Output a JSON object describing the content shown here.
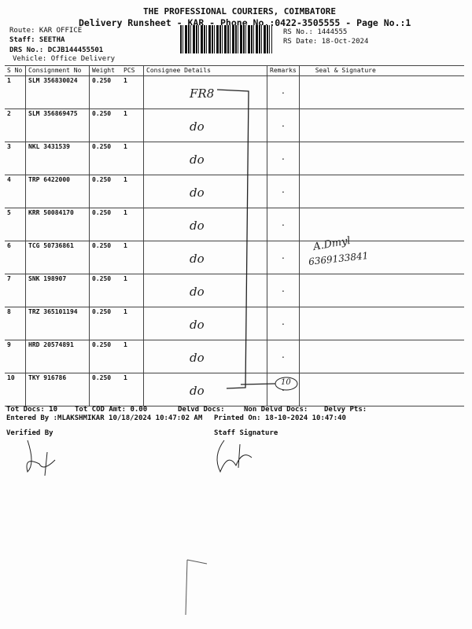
{
  "header": {
    "company": "THE PROFESSIONAL COURIERS, COIMBATORE",
    "title": "Delivery Runsheet - KAR - Phone No.:0422-3505555 - Page No.:1",
    "route": "Route: KAR OFFICE",
    "staff": "Staff: SEETHA",
    "drs": "DRS No.: DCJB144455501",
    "vehicle": "Vehicle: Office Delivery",
    "rs_no": "RS No.: 1444555",
    "rs_date": "RS Date: 18-Oct-2024"
  },
  "table": {
    "columns": [
      "S No",
      "Consignment No",
      "Weight",
      "PCS",
      "Consignee Details",
      "Remarks",
      "Seal & Signature"
    ],
    "rows": [
      {
        "sno": "1",
        "cn": "SLM 356830024",
        "wt": "0.250",
        "pcs": "1",
        "hand": "FR8"
      },
      {
        "sno": "2",
        "cn": "SLM 356869475",
        "wt": "0.250",
        "pcs": "1",
        "hand": "do"
      },
      {
        "sno": "3",
        "cn": "NKL 3431539",
        "wt": "0.250",
        "pcs": "1",
        "hand": "do"
      },
      {
        "sno": "4",
        "cn": "TRP 6422000",
        "wt": "0.250",
        "pcs": "1",
        "hand": "do"
      },
      {
        "sno": "5",
        "cn": "KRR 50084170",
        "wt": "0.250",
        "pcs": "1",
        "hand": "do"
      },
      {
        "sno": "6",
        "cn": "TCG 50736861",
        "wt": "0.250",
        "pcs": "1",
        "hand": "do"
      },
      {
        "sno": "7",
        "cn": "SNK 198907",
        "wt": "0.250",
        "pcs": "1",
        "hand": "do"
      },
      {
        "sno": "8",
        "cn": "TRZ 365101194",
        "wt": "0.250",
        "pcs": "1",
        "hand": "do"
      },
      {
        "sno": "9",
        "cn": "HRD 20574891",
        "wt": "0.250",
        "pcs": "1",
        "hand": "do"
      },
      {
        "sno": "10",
        "cn": "TKY 916786",
        "wt": "0.250",
        "pcs": "1",
        "hand": "do"
      }
    ]
  },
  "handwriting": {
    "circled_count": "10",
    "signature_name": "A.Dmyl",
    "signature_phone": "6369133841"
  },
  "footer": {
    "tot_docs": "Tot Docs:  10",
    "cod": "Tot COD Amt:    0.00",
    "delvd": "Delvd Docs:",
    "non_delvd": "Non Delvd Docs:",
    "pts": "Delvy Pts:",
    "entered": "Entered By :MLAKSHMIKAR 10/18/2024 10:47:02 AM",
    "printed": "Printed On: 18-10-2024 10:47:40",
    "verified": "Verified By",
    "staff_sig": "Staff Signature"
  }
}
